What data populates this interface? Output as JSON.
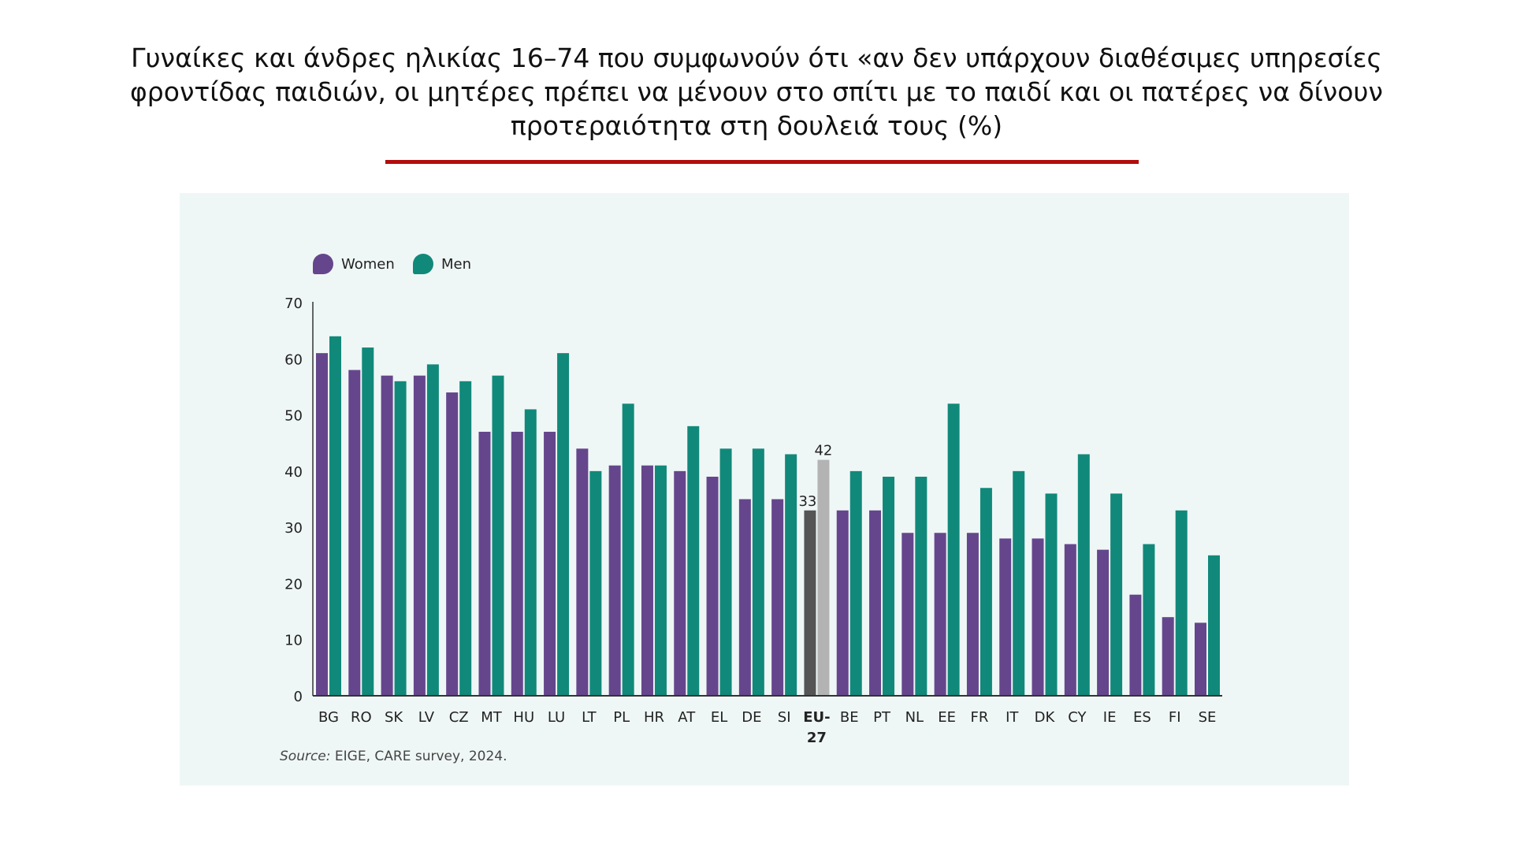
{
  "title": "Γυναίκες και άνδρες ηλικίας 16–74 που συμφωνούν ότι «αν δεν υπάρχουν διαθέσιμες υπηρεσίες φροντίδας παιδιών, οι μητέρες πρέπει να μένουν στο σπίτι με το παιδί και οι πατέρες να δίνουν προτεραιότητα στη δουλειά τους (%)",
  "source_prefix": "Source:",
  "source_text": " EIGE, CARE survey, 2024.",
  "colors": {
    "women": "#65468c",
    "men": "#11897a",
    "eu_women": "#555555",
    "eu_men": "#b3b3b3",
    "accent_line": "#b30c0c",
    "panel": "#eff7f6"
  },
  "chart_data": {
    "type": "bar",
    "title": "",
    "xlabel": "",
    "ylabel": "",
    "ylim": [
      0,
      70
    ],
    "yticks": [
      0,
      10,
      20,
      30,
      40,
      50,
      60,
      70
    ],
    "grid": false,
    "legend": "top-left",
    "categories": [
      "BG",
      "RO",
      "SK",
      "LV",
      "CZ",
      "MT",
      "HU",
      "LU",
      "LT",
      "PL",
      "HR",
      "AT",
      "EL",
      "DE",
      "SI",
      "EU-27",
      "BE",
      "PT",
      "NL",
      "EE",
      "FR",
      "IT",
      "DK",
      "CY",
      "IE",
      "ES",
      "FI",
      "SE"
    ],
    "highlight_category": "EU-27",
    "series": [
      {
        "name": "Women",
        "values": [
          61,
          58,
          57,
          57,
          54,
          47,
          47,
          47,
          44,
          41,
          41,
          40,
          39,
          35,
          35,
          33,
          33,
          33,
          29,
          29,
          29,
          28,
          28,
          27,
          26,
          18,
          14,
          13
        ]
      },
      {
        "name": "Men",
        "values": [
          64,
          62,
          56,
          59,
          56,
          57,
          51,
          61,
          40,
          52,
          41,
          48,
          44,
          44,
          43,
          42,
          40,
          39,
          39,
          52,
          37,
          40,
          36,
          43,
          36,
          27,
          33,
          25
        ]
      }
    ],
    "data_labels": [
      {
        "category": "EU-27",
        "series": "Women",
        "text": "33"
      },
      {
        "category": "EU-27",
        "series": "Men",
        "text": "42"
      }
    ]
  }
}
